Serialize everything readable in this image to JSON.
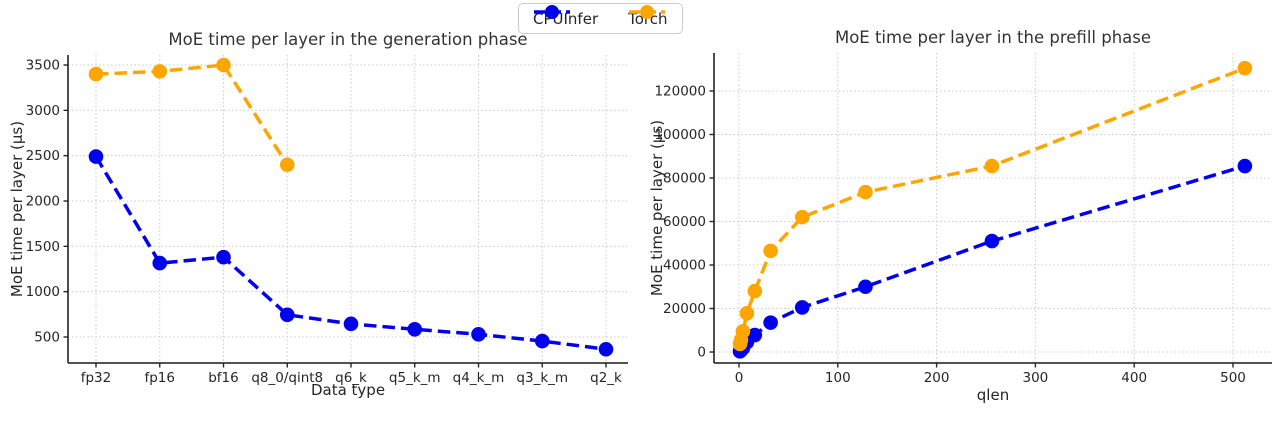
{
  "page": {
    "background": "#ffffff"
  },
  "legend": {
    "items": [
      {
        "label": "CPUInfer",
        "color": "#0000ee"
      },
      {
        "label": "Torch",
        "color": "#ffa500"
      }
    ]
  },
  "chart_data": [
    {
      "type": "line",
      "title": "MoE time per layer in the generation phase",
      "xlabel": "Data type",
      "ylabel": "MoE time per layer (µs)",
      "categories": [
        "fp32",
        "fp16",
        "bf16",
        "q8_0/qint8",
        "q6_k",
        "q5_k_m",
        "q4_k_m",
        "q3_k_m",
        "q2_k"
      ],
      "series": [
        {
          "name": "CPUInfer",
          "color": "#0000ee",
          "values": [
            2490,
            1315,
            1380,
            745,
            645,
            585,
            530,
            455,
            365
          ]
        },
        {
          "name": "Torch",
          "color": "#ffa500",
          "values": [
            3400,
            3430,
            3500,
            2400,
            null,
            null,
            null,
            null,
            null
          ]
        }
      ],
      "yticks": [
        500,
        1000,
        1500,
        2000,
        2500,
        3000,
        3500
      ],
      "ylim": [
        215,
        3620
      ],
      "grid": "dotted",
      "line_style": "dashed",
      "legend_position": "figure top center"
    },
    {
      "type": "line",
      "title": "MoE time per layer in the prefill phase",
      "xlabel": "qlen",
      "ylabel": "MoE time per layer (µs)",
      "x": [
        1,
        2,
        4,
        8,
        16,
        32,
        64,
        128,
        256,
        512
      ],
      "series": [
        {
          "name": "CPUInfer",
          "color": "#0000ee",
          "values": [
            300,
            800,
            1800,
            4500,
            7800,
            13500,
            20500,
            30000,
            51000,
            85500
          ]
        },
        {
          "name": "Torch",
          "color": "#ffa500",
          "values": [
            3700,
            5500,
            9500,
            17800,
            28000,
            46500,
            62000,
            73500,
            85500,
            130500
          ]
        }
      ],
      "xticks": [
        0,
        100,
        200,
        300,
        400,
        500
      ],
      "yticks": [
        0,
        20000,
        40000,
        60000,
        80000,
        100000,
        120000
      ],
      "xlim": [
        -25,
        540
      ],
      "ylim": [
        -5000,
        137500
      ],
      "grid": "dotted",
      "line_style": "dashed"
    }
  ]
}
